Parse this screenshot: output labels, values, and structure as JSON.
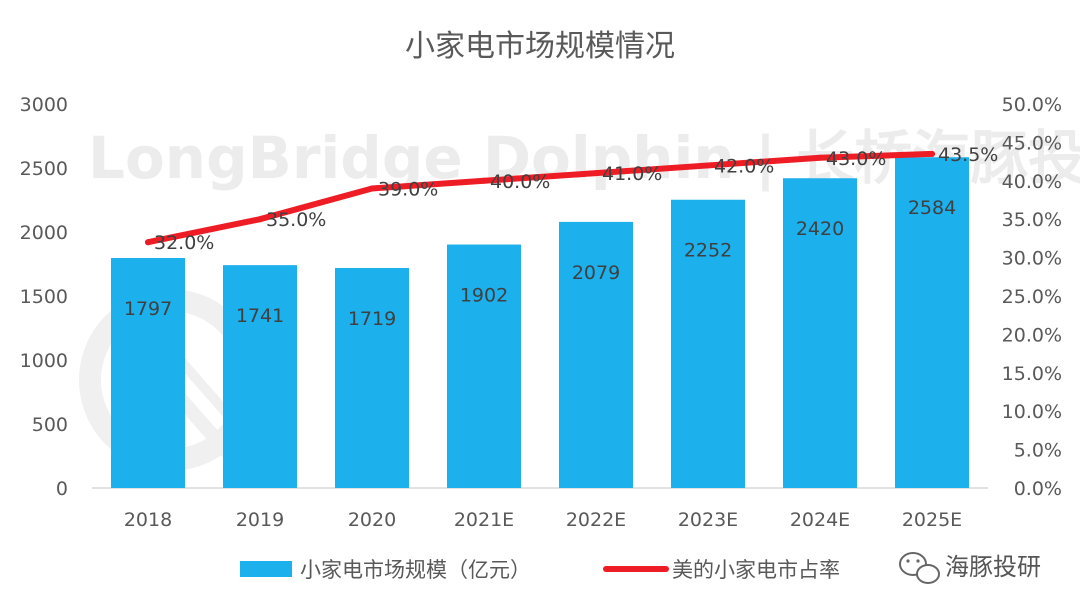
{
  "chart_data": {
    "type": "bar",
    "title": "小家电市场规模情况",
    "categories": [
      "2018",
      "2019",
      "2020",
      "2021E",
      "2022E",
      "2023E",
      "2024E",
      "2025E"
    ],
    "series": [
      {
        "name": "小家电市场规模（亿元）",
        "type": "bar",
        "axis": "left",
        "values": [
          1797,
          1741,
          1719,
          1902,
          2079,
          2252,
          2420,
          2584
        ],
        "labels": [
          "1797",
          "1741",
          "1719",
          "1902",
          "2079",
          "2252",
          "2420",
          "2584"
        ]
      },
      {
        "name": "美的小家电市占率",
        "type": "line",
        "axis": "right",
        "values": [
          32.0,
          35.0,
          39.0,
          40.0,
          41.0,
          42.0,
          43.0,
          43.5
        ],
        "labels": [
          "32.0%",
          "35.0%",
          "39.0%",
          "40.0%",
          "41.0%",
          "42.0%",
          "43.0%",
          "43.5%"
        ]
      }
    ],
    "y_left": {
      "range": [
        0,
        3000
      ],
      "ticks": [
        0,
        500,
        1000,
        1500,
        2000,
        2500,
        3000
      ],
      "tick_labels": [
        "0",
        "500",
        "1000",
        "1500",
        "2000",
        "2500",
        "3000"
      ]
    },
    "y_right": {
      "range": [
        0,
        50
      ],
      "ticks": [
        0,
        5,
        10,
        15,
        20,
        25,
        30,
        35,
        40,
        45,
        50
      ],
      "tick_labels": [
        "0.0%",
        "5.0%",
        "10.0%",
        "15.0%",
        "20.0%",
        "25.0%",
        "30.0%",
        "35.0%",
        "40.0%",
        "45.0%",
        "50.0%"
      ]
    },
    "grid": false,
    "legend_position": "bottom",
    "colors": {
      "bar": "#1cb0ec",
      "line": "#ee1c25"
    }
  },
  "watermark": "LongBridge Dolphin | 长桥海豚投研",
  "brand": {
    "icon": "wechat-icon",
    "label": "海豚投研"
  }
}
